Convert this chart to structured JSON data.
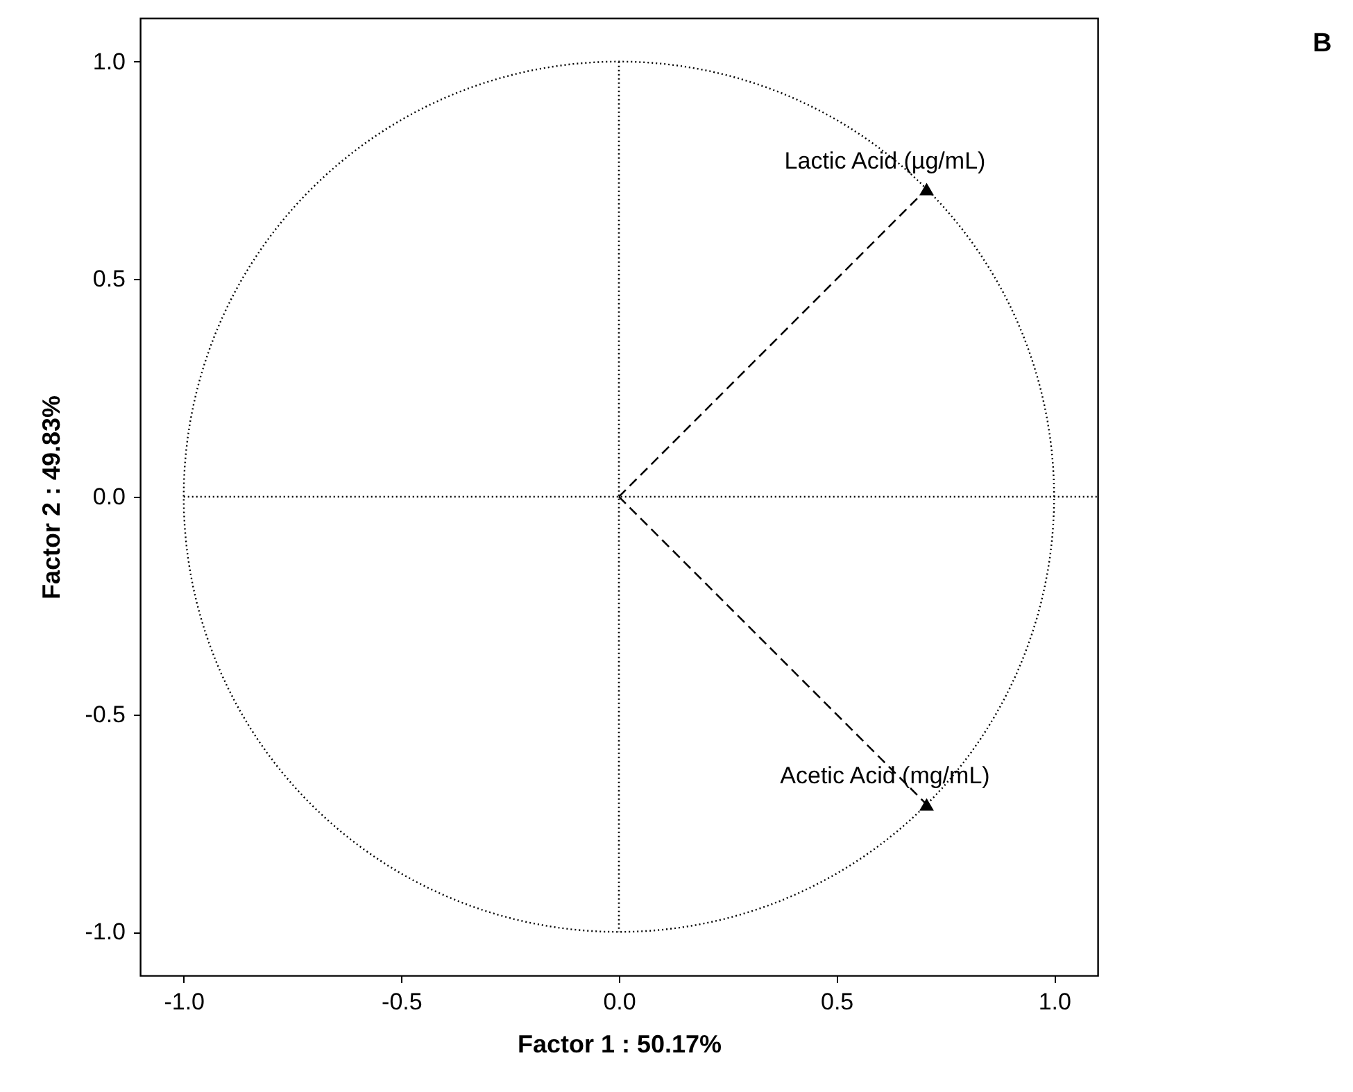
{
  "chart_data": {
    "type": "scatter",
    "xlabel": "Factor 1 : 50.17%",
    "ylabel": "Factor 2 : 49.83%",
    "xlim": [
      -1.1,
      1.1
    ],
    "ylim": [
      -1.1,
      1.1
    ],
    "xticks": [
      {
        "value": -1,
        "label": "-1.0"
      },
      {
        "value": -0.5,
        "label": "-0.5"
      },
      {
        "value": 0,
        "label": "0.0"
      },
      {
        "value": 0.5,
        "label": "0.5"
      },
      {
        "value": 1,
        "label": "1.0"
      }
    ],
    "yticks": [
      {
        "value": -1,
        "label": "-1.0"
      },
      {
        "value": -0.5,
        "label": "-0.5"
      },
      {
        "value": 0,
        "label": "0.0"
      },
      {
        "value": 0.5,
        "label": "0.5"
      },
      {
        "value": 1,
        "label": "1.0"
      }
    ],
    "grid": false,
    "series": [
      {
        "type": "line",
        "line_style": "dotted",
        "color": "#000000",
        "marker": "none",
        "x": [
          -1,
          1.1
        ],
        "values": [
          0,
          0
        ]
      },
      {
        "type": "line",
        "line_style": "dotted",
        "color": "#000000",
        "marker": "none",
        "x": [
          0,
          0
        ],
        "values": [
          1,
          -1
        ]
      },
      {
        "type": "line",
        "line_style": "dashed",
        "color": "#000000",
        "marker": "none",
        "x": [
          0,
          0.707
        ],
        "values": [
          0,
          0.707
        ]
      },
      {
        "type": "line",
        "line_style": "dashed",
        "color": "#000000",
        "marker": "none",
        "x": [
          0,
          0.707
        ],
        "values": [
          0,
          -0.707
        ]
      },
      {
        "type": "scatter",
        "color": "#000000",
        "marker": "triangle",
        "x": [
          0.707,
          0.707
        ],
        "values": [
          0.707,
          -0.707
        ]
      }
    ],
    "annotations": [
      {
        "text": "Lactic Acid (µg/mL)",
        "x": 0.707,
        "y": 0.707
      },
      {
        "text": "Acetic Acid (mg/mL)",
        "x": 0.707,
        "y": -0.707
      },
      "B"
    ]
  }
}
